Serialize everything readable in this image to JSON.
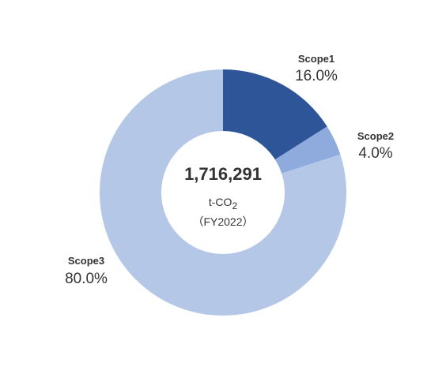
{
  "chart_data": {
    "type": "pie",
    "variant": "donut",
    "categories": [
      "Scope1",
      "Scope2",
      "Scope3"
    ],
    "values": [
      16.0,
      4.0,
      80.0
    ],
    "value_labels": [
      "16.0%",
      "4.0%",
      "80.0%"
    ],
    "colors": [
      "#2d5597",
      "#8faadc",
      "#b4c7e7"
    ],
    "title": "",
    "center": {
      "total": "1,716,291",
      "unit_main": "t-CO",
      "unit_sub": "2",
      "year": "（FY2022）"
    }
  }
}
